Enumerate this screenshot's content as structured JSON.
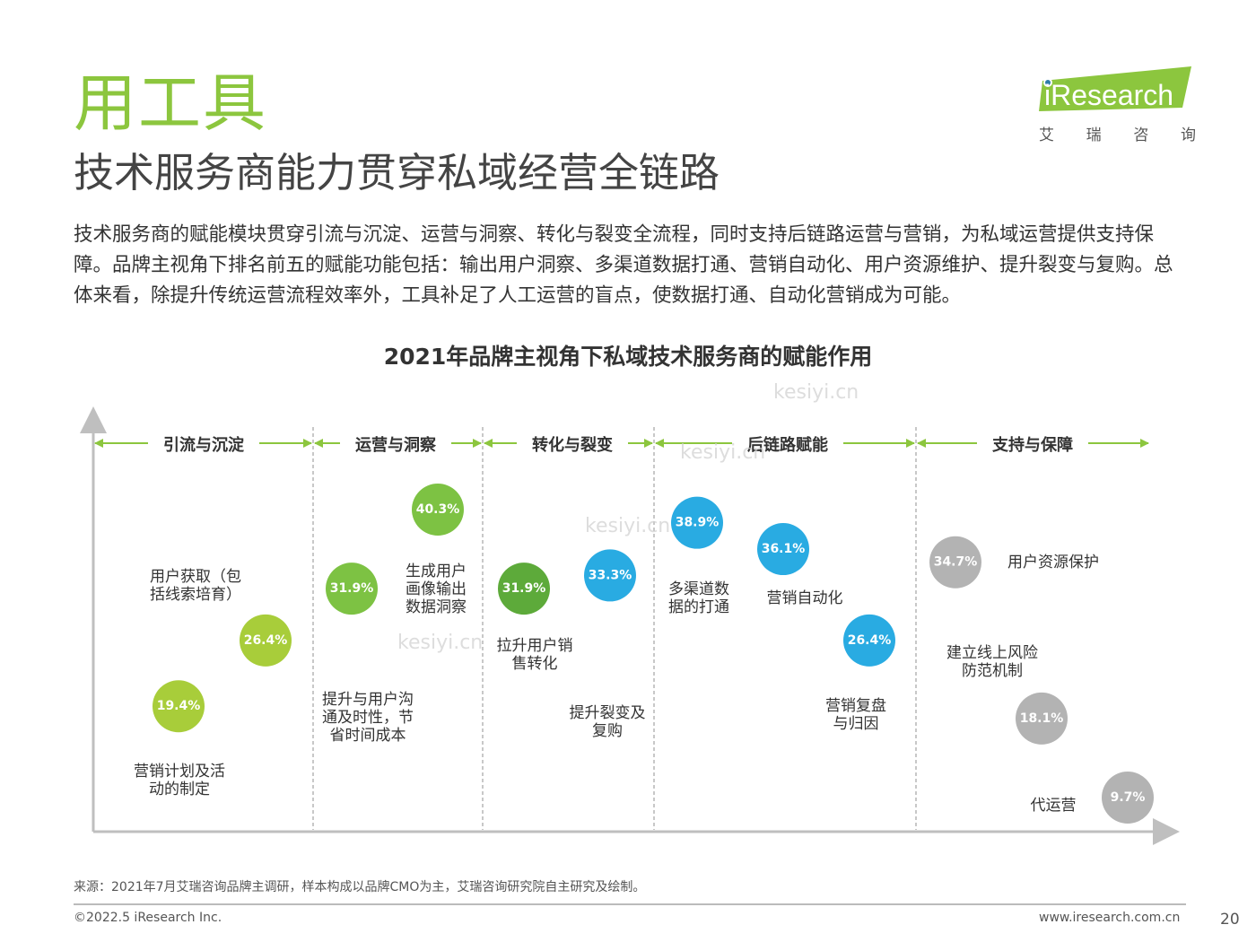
{
  "section_title": "用工具",
  "main_title": "技术服务商能力贯穿私域经营全链路",
  "intro": "技术服务商的赋能模块贯穿引流与沉淀、运营与洞察、转化与裂变全流程，同时支持后链路运营与营销，为私域运营提供支持保障。品牌主视角下排名前五的赋能功能包括：输出用户洞察、多渠道数据打通、营销自动化、用户资源维护、提升裂变与复购。总体来看，除提升传统运营流程效率外，工具补足了人工运营的盲点，使数据打通、自动化营销成为可能。",
  "logo": {
    "name": "iResearch",
    "sub": [
      "艾",
      "瑞",
      "咨",
      "询"
    ],
    "accent": "#8cc63e"
  },
  "watermark": "kesiyi.cn",
  "colors": {
    "green": "#8cc63e",
    "light_green": "#a8cd3a",
    "mid_green": "#7dc243",
    "dark_green": "#5daa3a",
    "blue": "#29abe2",
    "gray": "#b3b3b3"
  },
  "chart_data": {
    "type": "scatter",
    "title": "2021年品牌主视角下私域技术服务商的赋能作用",
    "categories": [
      "引流与沉淀",
      "运营与洞察",
      "转化与裂变",
      "后链路赋能",
      "支持与保障"
    ],
    "points": [
      {
        "category": "引流与沉淀",
        "label": "用户获取（包\n括线索培育）",
        "value": 26.4,
        "text": "26.4%",
        "color": "#a8cd3a"
      },
      {
        "category": "引流与沉淀",
        "label": "营销计划及活\n动的制定",
        "value": 19.4,
        "text": "19.4%",
        "color": "#a8cd3a"
      },
      {
        "category": "运营与洞察",
        "label": "提升与用户沟\n通及时性，节\n省时间成本",
        "value": 31.9,
        "text": "31.9%",
        "color": "#7dc243"
      },
      {
        "category": "运营与洞察",
        "label": "生成用户\n画像输出\n数据洞察",
        "value": 40.3,
        "text": "40.3%",
        "color": "#7dc243"
      },
      {
        "category": "转化与裂变",
        "label": "拉升用户销\n售转化",
        "value": 31.9,
        "text": "31.9%",
        "color": "#5daa3a"
      },
      {
        "category": "转化与裂变",
        "label": "提升裂变及\n复购",
        "value": 33.3,
        "text": "33.3%",
        "color": "#29abe2"
      },
      {
        "category": "后链路赋能",
        "label": "多渠道数\n据的打通",
        "value": 38.9,
        "text": "38.9%",
        "color": "#29abe2"
      },
      {
        "category": "后链路赋能",
        "label": "营销自动化",
        "value": 36.1,
        "text": "36.1%",
        "color": "#29abe2"
      },
      {
        "category": "后链路赋能",
        "label": "营销复盘\n与归因",
        "value": 26.4,
        "text": "26.4%",
        "color": "#29abe2"
      },
      {
        "category": "支持与保障",
        "label": "用户资源保护",
        "value": 34.7,
        "text": "34.7%",
        "color": "#b3b3b3"
      },
      {
        "category": "支持与保障",
        "label": "建立线上风险\n防范机制",
        "value": 18.1,
        "text": "18.1%",
        "color": "#b3b3b3"
      },
      {
        "category": "支持与保障",
        "label": "代运营",
        "value": 9.7,
        "text": "9.7%",
        "color": "#b3b3b3"
      }
    ]
  },
  "footer": {
    "source": "来源：2021年7月艾瑞咨询品牌主调研，样本构成以品牌CMO为主，艾瑞咨询研究院自主研究及绘制。",
    "copyright": "©2022.5 iResearch Inc.",
    "url": "www.iresearch.com.cn",
    "page": "20"
  }
}
